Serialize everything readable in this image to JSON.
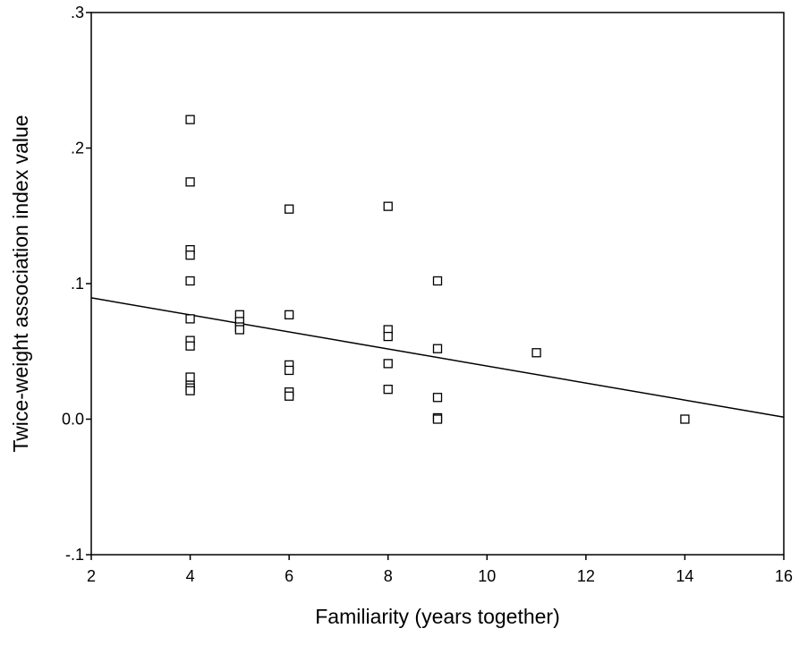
{
  "chart_data": {
    "type": "scatter",
    "title": "",
    "xlabel": "Familiarity (years together)",
    "ylabel": "Twice-weight association index value",
    "xlim": [
      2,
      16
    ],
    "ylim": [
      -0.1,
      0.3
    ],
    "x_ticks": [
      2,
      4,
      6,
      8,
      10,
      12,
      14,
      16
    ],
    "x_tick_labels": [
      "2",
      "4",
      "6",
      "8",
      "10",
      "12",
      "14",
      "16"
    ],
    "y_ticks": [
      -0.1,
      0.0,
      0.1,
      0.2,
      0.3
    ],
    "y_tick_labels": [
      "-.1",
      "0.0",
      ".1",
      ".2",
      ".3"
    ],
    "grid": false,
    "marker": "open-square",
    "series": [
      {
        "points": [
          {
            "x": 4,
            "y": 0.221
          },
          {
            "x": 4,
            "y": 0.175
          },
          {
            "x": 4,
            "y": 0.125
          },
          {
            "x": 4,
            "y": 0.121
          },
          {
            "x": 4,
            "y": 0.102
          },
          {
            "x": 4,
            "y": 0.074
          },
          {
            "x": 4,
            "y": 0.058
          },
          {
            "x": 4,
            "y": 0.054
          },
          {
            "x": 4,
            "y": 0.031
          },
          {
            "x": 4,
            "y": 0.025
          },
          {
            "x": 4,
            "y": 0.023
          },
          {
            "x": 4,
            "y": 0.021
          },
          {
            "x": 5,
            "y": 0.077
          },
          {
            "x": 5,
            "y": 0.072
          },
          {
            "x": 5,
            "y": 0.068
          },
          {
            "x": 5,
            "y": 0.066
          },
          {
            "x": 6,
            "y": 0.155
          },
          {
            "x": 6,
            "y": 0.077
          },
          {
            "x": 6,
            "y": 0.04
          },
          {
            "x": 6,
            "y": 0.036
          },
          {
            "x": 6,
            "y": 0.02
          },
          {
            "x": 6,
            "y": 0.017
          },
          {
            "x": 8,
            "y": 0.157
          },
          {
            "x": 8,
            "y": 0.066
          },
          {
            "x": 8,
            "y": 0.061
          },
          {
            "x": 8,
            "y": 0.041
          },
          {
            "x": 8,
            "y": 0.022
          },
          {
            "x": 9,
            "y": 0.102
          },
          {
            "x": 9,
            "y": 0.052
          },
          {
            "x": 9,
            "y": 0.016
          },
          {
            "x": 9,
            "y": 0.001
          },
          {
            "x": 9,
            "y": 0.0
          },
          {
            "x": 11,
            "y": 0.049
          },
          {
            "x": 14,
            "y": 0.0
          }
        ]
      }
    ],
    "fit_line": {
      "x": [
        2,
        16
      ],
      "y": [
        0.0895,
        0.0015
      ]
    }
  }
}
